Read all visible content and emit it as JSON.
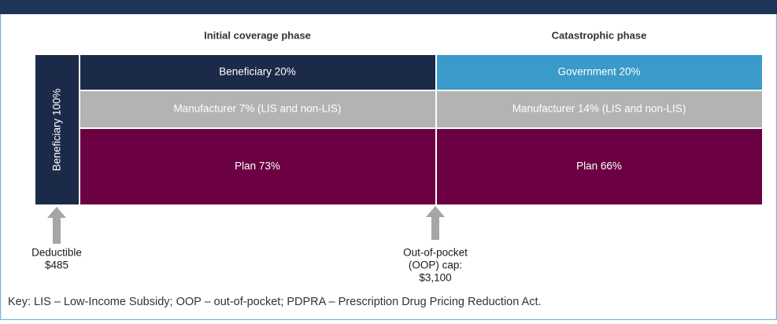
{
  "phases": [
    "Initial coverage phase",
    "Catastrophic phase"
  ],
  "deductible_block": "Beneficiary 100%",
  "initial": [
    "Beneficiary 20%",
    "Manufacturer 7% (LIS and non-LIS)",
    "Plan 73%"
  ],
  "catastrophic": [
    "Government 20%",
    "Manufacturer 14% (LIS and non-LIS)",
    "Plan 66%"
  ],
  "markers": [
    {
      "lines": [
        "Deductible",
        "$485"
      ]
    },
    {
      "lines": [
        "Out-of-pocket",
        "(OOP) cap:",
        "$3,100"
      ]
    }
  ],
  "key": "Key: LIS – Low-Income Subsidy; OOP – out-of-pocket; PDPRA – Prescription Drug Pricing Reduction Act."
}
